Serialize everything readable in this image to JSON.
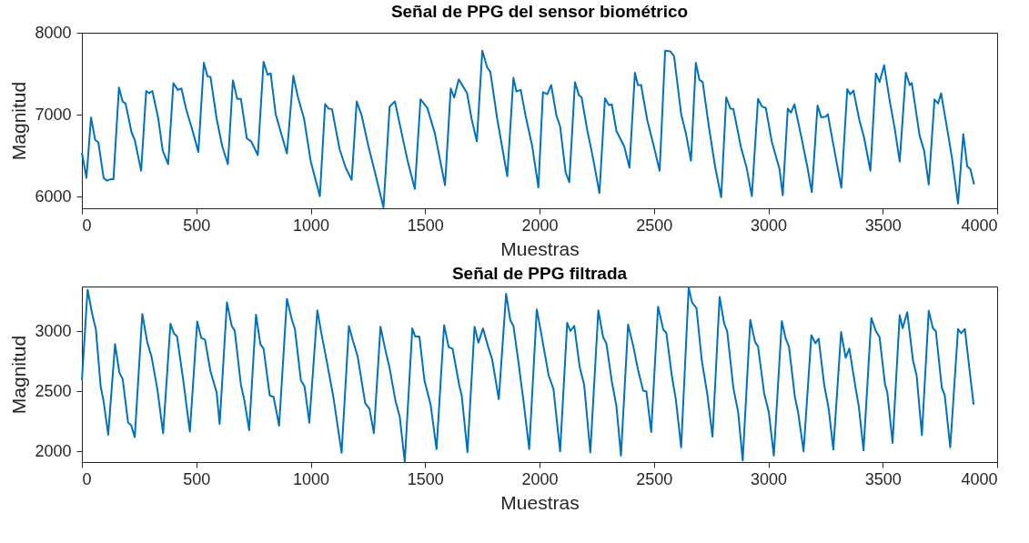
{
  "chart_data": [
    {
      "type": "line",
      "title": "Señal de PPG del sensor biométrico",
      "xlabel": "Muestras",
      "ylabel": "Magnitud",
      "xlim": [
        0,
        4000
      ],
      "ylim": [
        5860,
        8000
      ],
      "xticks": [
        0,
        500,
        1000,
        1500,
        2000,
        2500,
        3000,
        3500,
        4000
      ],
      "yticks": [
        6000,
        7000,
        8000
      ],
      "grid": false,
      "line_style": "solid",
      "marker": "none",
      "x": [
        0,
        20,
        40,
        58,
        72,
        95,
        109,
        125,
        138,
        162,
        178,
        191,
        217,
        231,
        259,
        281,
        294,
        308,
        334,
        353,
        377,
        400,
        419,
        435,
        456,
        480,
        509,
        533,
        549,
        562,
        589,
        613,
        638,
        660,
        679,
        695,
        721,
        740,
        769,
        794,
        812,
        825,
        847,
        864,
        896,
        924,
        944,
        971,
        1000,
        1040,
        1063,
        1079,
        1093,
        1126,
        1152,
        1179,
        1201,
        1223,
        1252,
        1285,
        1318,
        1345,
        1368,
        1398,
        1424,
        1455,
        1480,
        1510,
        1543,
        1587,
        1612,
        1627,
        1647,
        1683,
        1703,
        1726,
        1750,
        1771,
        1785,
        1815,
        1859,
        1886,
        1899,
        1918,
        1939,
        1968,
        1995,
        2015,
        2034,
        2051,
        2074,
        2090,
        2114,
        2130,
        2155,
        2172,
        2184,
        2208,
        2233,
        2262,
        2286,
        2303,
        2316,
        2336,
        2370,
        2393,
        2417,
        2430,
        2444,
        2471,
        2498,
        2525,
        2549,
        2572,
        2588,
        2619,
        2639,
        2662,
        2683,
        2699,
        2713,
        2740,
        2767,
        2794,
        2816,
        2834,
        2847,
        2881,
        2905,
        2928,
        2955,
        2972,
        2989,
        3015,
        3049,
        3063,
        3085,
        3099,
        3114,
        3143,
        3170,
        3190,
        3215,
        3231,
        3251,
        3260,
        3284,
        3319,
        3345,
        3358,
        3372,
        3398,
        3418,
        3446,
        3470,
        3486,
        3506,
        3529,
        3553,
        3574,
        3601,
        3618,
        3627,
        3661,
        3681,
        3701,
        3726,
        3742,
        3755,
        3782,
        3802,
        3829,
        3852,
        3869,
        3883,
        3899
      ],
      "series": [
        {
          "color": "#0072bd",
          "values": [
            6539,
            6232,
            6967,
            6694,
            6664,
            6232,
            6196,
            6214,
            6214,
            7332,
            7162,
            7137,
            6786,
            6694,
            6317,
            7291,
            7262,
            7291,
            6952,
            6565,
            6398,
            7384,
            7303,
            7321,
            7063,
            6841,
            6546,
            7635,
            7469,
            7461,
            6952,
            6620,
            6398,
            7421,
            7192,
            7192,
            6712,
            6675,
            6509,
            7646,
            7487,
            7505,
            7007,
            6841,
            6528,
            7476,
            7218,
            6952,
            6435,
            6007,
            7129,
            7074,
            7070,
            6583,
            6362,
            6207,
            7162,
            6989,
            6620,
            6251,
            5870,
            7100,
            7162,
            6768,
            6435,
            6096,
            7188,
            7081,
            6768,
            6140,
            7321,
            7210,
            7432,
            7266,
            6952,
            6675,
            7782,
            7579,
            7524,
            6952,
            6251,
            7450,
            7284,
            7303,
            6989,
            6620,
            6115,
            7276,
            7250,
            7362,
            6989,
            6858,
            6299,
            6179,
            7399,
            7239,
            7213,
            6821,
            6485,
            6045,
            7201,
            7119,
            7127,
            6802,
            6616,
            6355,
            7511,
            7362,
            7362,
            6933,
            6634,
            6317,
            7780,
            7772,
            7716,
            7007,
            6784,
            6440,
            7634,
            7425,
            7399,
            6858,
            6373,
            5993,
            7213,
            7075,
            7071,
            6597,
            6355,
            6008,
            7194,
            7101,
            7082,
            6672,
            6336,
            6019,
            7075,
            7026,
            7127,
            6746,
            6373,
            6056,
            7112,
            6970,
            6978,
            7007,
            6634,
            6112,
            7313,
            7250,
            7295,
            6933,
            6728,
            6317,
            7504,
            7399,
            7604,
            7194,
            6821,
            6429,
            7511,
            7362,
            7388,
            6746,
            6560,
            6150,
            7187,
            7138,
            7261,
            6821,
            6485,
            5918,
            6765,
            6373,
            6336,
            6150
          ]
        }
      ]
    },
    {
      "type": "line",
      "title": "Señal de PPG filtrada",
      "xlabel": "Muestras",
      "ylabel": "Magnitud",
      "xlim": [
        0,
        4000
      ],
      "ylim": [
        1910,
        3375
      ],
      "xticks": [
        0,
        500,
        1000,
        1500,
        2000,
        2500,
        3000,
        3500,
        4000
      ],
      "yticks": [
        2000,
        2500,
        3000
      ],
      "grid": false,
      "line_style": "solid",
      "marker": "none",
      "x": [
        0,
        25,
        45,
        61,
        82,
        95,
        115,
        145,
        164,
        178,
        202,
        215,
        231,
        264,
        286,
        304,
        330,
        355,
        387,
        403,
        416,
        443,
        472,
        504,
        522,
        538,
        562,
        589,
        602,
        634,
        655,
        668,
        695,
        711,
        731,
        761,
        780,
        794,
        821,
        838,
        862,
        896,
        918,
        931,
        957,
        973,
        994,
        1029,
        1048,
        1066,
        1099,
        1135,
        1167,
        1185,
        1205,
        1238,
        1257,
        1276,
        1305,
        1325,
        1345,
        1371,
        1389,
        1411,
        1444,
        1457,
        1475,
        1497,
        1524,
        1550,
        1583,
        1603,
        1620,
        1650,
        1660,
        1685,
        1716,
        1733,
        1753,
        1776,
        1793,
        1822,
        1854,
        1872,
        1886,
        1908,
        1931,
        1955,
        1988,
        2005,
        2040,
        2061,
        2090,
        2121,
        2135,
        2152,
        2175,
        2195,
        2222,
        2257,
        2278,
        2292,
        2316,
        2336,
        2356,
        2387,
        2410,
        2430,
        2453,
        2467,
        2488,
        2518,
        2541,
        2554,
        2578,
        2596,
        2619,
        2652,
        2666,
        2686,
        2709,
        2733,
        2756,
        2787,
        2807,
        2820,
        2847,
        2868,
        2888,
        2921,
        2942,
        2955,
        2982,
        3002,
        3024,
        3059,
        3076,
        3090,
        3116,
        3130,
        3154,
        3188,
        3206,
        3220,
        3244,
        3264,
        3284,
        3318,
        3338,
        3354,
        3379,
        3395,
        3416,
        3450,
        3470,
        3486,
        3510,
        3520,
        3543,
        3574,
        3587,
        3607,
        3632,
        3648,
        3671,
        3701,
        3719,
        3732,
        3758,
        3771,
        3795,
        3829,
        3843,
        3859,
        3879,
        3897
      ],
      "series": [
        {
          "color": "#0072bd",
          "values": [
            2592,
            3348,
            3146,
            3020,
            2542,
            2416,
            2139,
            2894,
            2655,
            2605,
            2239,
            2219,
            2118,
            3146,
            2907,
            2793,
            2516,
            2151,
            3063,
            2982,
            2957,
            2592,
            2164,
            3083,
            2945,
            2932,
            2667,
            2491,
            2227,
            3242,
            3045,
            3008,
            2554,
            2416,
            2176,
            3139,
            2894,
            2856,
            2466,
            2453,
            2214,
            3272,
            3096,
            3020,
            2592,
            2542,
            2239,
            3176,
            2970,
            2793,
            2453,
            1987,
            3045,
            2919,
            2793,
            2403,
            2353,
            2151,
            3040,
            2856,
            2693,
            2416,
            2290,
            1912,
            3025,
            2957,
            2957,
            2592,
            2390,
            2018,
            3053,
            2869,
            2856,
            2542,
            2466,
            1992,
            3040,
            2907,
            3025,
            2869,
            2768,
            2435,
            3315,
            3096,
            3045,
            2743,
            2403,
            2018,
            3184,
            3008,
            2633,
            2518,
            2000,
            3071,
            3003,
            3046,
            2709,
            2556,
            1990,
            3176,
            2952,
            2901,
            2582,
            2378,
            1964,
            3059,
            2875,
            2684,
            2505,
            2500,
            2161,
            3207,
            3015,
            2990,
            2633,
            2429,
            2033,
            3367,
            3245,
            3194,
            2760,
            2480,
            2122,
            3288,
            3066,
            3003,
            2531,
            2327,
            1923,
            3097,
            2913,
            2875,
            2480,
            2327,
            1964,
            3087,
            2939,
            2875,
            2454,
            2327,
            2000,
            2969,
            2901,
            2939,
            2556,
            2352,
            2015,
            2995,
            2781,
            2857,
            2556,
            2378,
            2008,
            3112,
            3003,
            2952,
            2556,
            2492,
            2071,
            3135,
            3028,
            3161,
            2760,
            2633,
            2135,
            3173,
            3028,
            3003,
            2531,
            2467,
            2033,
            3020,
            2985,
            3020,
            2684,
            2390
          ]
        }
      ]
    }
  ]
}
